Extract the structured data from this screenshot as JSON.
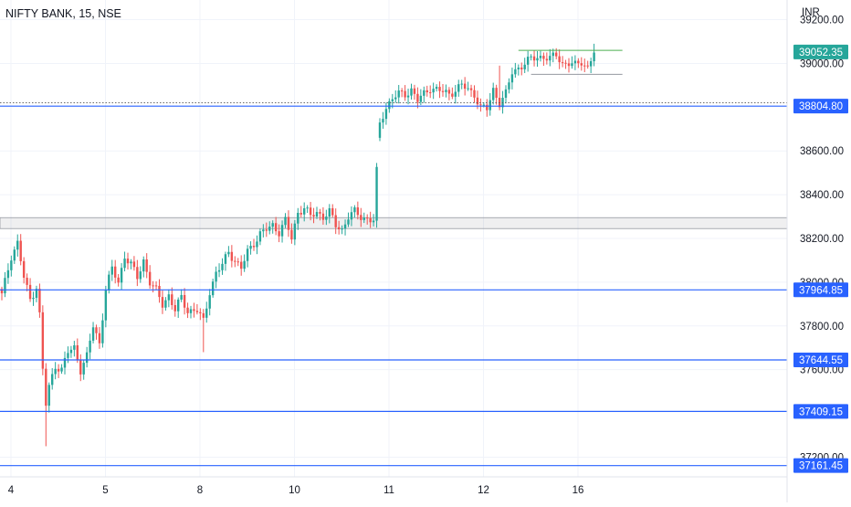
{
  "header": {
    "symbol": "NIFTY BANK, 15, NSE",
    "currency": "INR"
  },
  "colors": {
    "up": "#26a69a",
    "down": "#ef5350",
    "level_line": "#2962ff",
    "grid": "#f0f3fa",
    "axis_text": "#131722",
    "last_price_bg": "#26a69a"
  },
  "chart_data": {
    "type": "candlestick",
    "title": "NIFTY BANK, 15, NSE",
    "y_axis": {
      "ylim": [
        37110,
        39290
      ],
      "ticks": [
        "39200.00",
        "39000.00",
        "38600.00",
        "38400.00",
        "38200.00",
        "38000.00",
        "37800.00",
        "37600.00",
        "37200.00"
      ]
    },
    "x_axis": {
      "labels": [
        "4",
        "5",
        "8",
        "10",
        "11",
        "12",
        "16"
      ]
    },
    "last_price": "39052.35",
    "horizontal_levels": [
      {
        "value": 38804.8,
        "label": "38804.80"
      },
      {
        "value": 37964.85,
        "label": "37964.85"
      },
      {
        "value": 37644.55,
        "label": "37644.55"
      },
      {
        "value": 37409.15,
        "label": "37409.15"
      },
      {
        "value": 37161.45,
        "label": "37161.45"
      }
    ],
    "dotted_level": 38820,
    "zone": {
      "from": 38245,
      "to": 38295
    },
    "green_segment": {
      "value": 39060,
      "x_from_index": 164,
      "x_to_index": 197
    },
    "gray_segment": {
      "value": 38950,
      "x_from_index": 168,
      "x_to_index": 197
    },
    "candle_anchors": [
      [
        0,
        37940
      ],
      [
        3,
        38120
      ],
      [
        5,
        38180
      ],
      [
        7,
        38020
      ],
      [
        9,
        37920
      ],
      [
        11,
        37980
      ],
      [
        12,
        37850
      ],
      [
        13,
        37600
      ],
      [
        14,
        37440
      ],
      [
        15,
        37520
      ],
      [
        17,
        37620
      ],
      [
        19,
        37600
      ],
      [
        21,
        37680
      ],
      [
        23,
        37700
      ],
      [
        25,
        37600
      ],
      [
        27,
        37660
      ],
      [
        29,
        37800
      ],
      [
        31,
        37720
      ],
      [
        33,
        37970
      ],
      [
        35,
        38060
      ],
      [
        37,
        38000
      ],
      [
        39,
        38120
      ],
      [
        41,
        38080
      ],
      [
        43,
        38020
      ],
      [
        45,
        38100
      ],
      [
        47,
        38000
      ],
      [
        49,
        37960
      ],
      [
        51,
        37900
      ],
      [
        53,
        37940
      ],
      [
        55,
        37870
      ],
      [
        57,
        37930
      ],
      [
        59,
        37870
      ],
      [
        62,
        37870
      ],
      [
        64,
        37820
      ],
      [
        66,
        37960
      ],
      [
        68,
        38040
      ],
      [
        70,
        38080
      ],
      [
        72,
        38140
      ],
      [
        74,
        38100
      ],
      [
        76,
        38060
      ],
      [
        78,
        38140
      ],
      [
        80,
        38180
      ],
      [
        82,
        38220
      ],
      [
        84,
        38240
      ],
      [
        86,
        38260
      ],
      [
        88,
        38230
      ],
      [
        90,
        38280
      ],
      [
        92,
        38200
      ],
      [
        94,
        38320
      ],
      [
        96,
        38340
      ],
      [
        98,
        38300
      ],
      [
        100,
        38320
      ],
      [
        102,
        38300
      ],
      [
        104,
        38320
      ],
      [
        106,
        38260
      ],
      [
        108,
        38240
      ],
      [
        110,
        38300
      ],
      [
        112,
        38320
      ],
      [
        114,
        38300
      ],
      [
        116,
        38290
      ],
      [
        118,
        38280
      ],
      [
        120,
        38730
      ],
      [
        122,
        38800
      ],
      [
        124,
        38840
      ],
      [
        126,
        38860
      ],
      [
        128,
        38860
      ],
      [
        130,
        38880
      ],
      [
        132,
        38830
      ],
      [
        134,
        38860
      ],
      [
        136,
        38890
      ],
      [
        138,
        38880
      ],
      [
        140,
        38870
      ],
      [
        142,
        38860
      ],
      [
        144,
        38880
      ],
      [
        146,
        38900
      ],
      [
        148,
        38880
      ],
      [
        150,
        38860
      ],
      [
        152,
        38800
      ],
      [
        154,
        38790
      ],
      [
        156,
        38880
      ],
      [
        158,
        38820
      ],
      [
        160,
        38860
      ],
      [
        162,
        38960
      ],
      [
        164,
        38980
      ],
      [
        166,
        39000
      ],
      [
        168,
        39020
      ],
      [
        170,
        39030
      ],
      [
        172,
        39030
      ],
      [
        174,
        39020
      ],
      [
        176,
        39040
      ],
      [
        178,
        39000
      ],
      [
        180,
        39000
      ],
      [
        182,
        38990
      ],
      [
        184,
        39010
      ],
      [
        186,
        38980
      ],
      [
        188,
        39052
      ]
    ],
    "candle_count": 189,
    "x_label_indices": [
      0,
      30,
      60,
      90,
      120,
      150,
      180
    ]
  }
}
